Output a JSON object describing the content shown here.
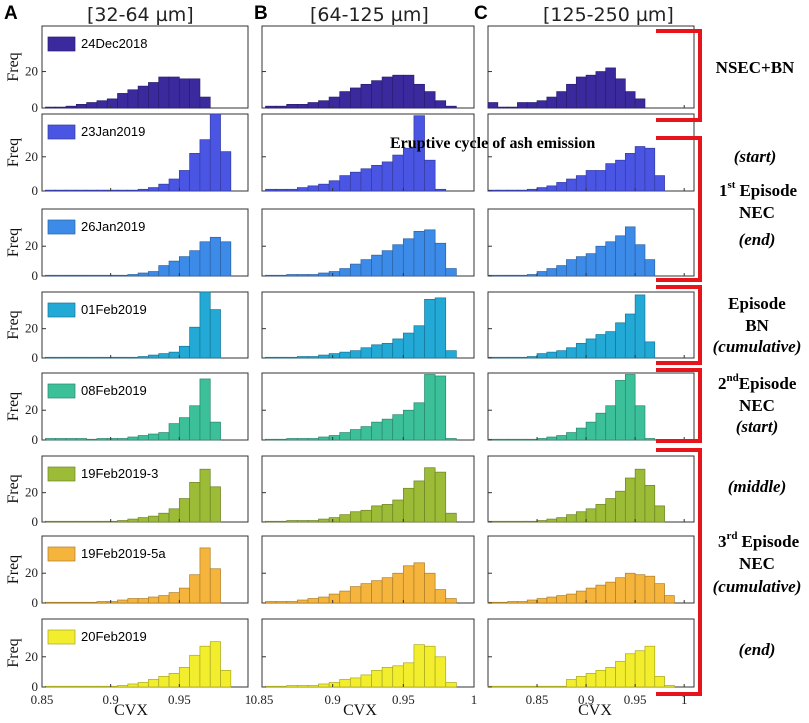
{
  "figure": {
    "columns": [
      {
        "letter": "A",
        "title": "[32-64 µm]"
      },
      {
        "letter": "B",
        "title": "[64-125 µm]"
      },
      {
        "letter": "C",
        "title": "[125-250 µm]"
      }
    ],
    "ylabel": "Freq",
    "xlabel": "CVX",
    "xticks_ab": [
      "0.85",
      "0.9",
      "0.95",
      "1"
    ],
    "xticks_c": [
      "0.85",
      "0.9",
      "0.95",
      "1"
    ],
    "ytick_labels": [
      "0",
      "20"
    ],
    "eruptive_label": "Eruptive cycle of ash emission"
  },
  "annotations": {
    "nsec_bn": "NSEC+BN",
    "ep1_start": "(start)",
    "ep1_num": "1",
    "ep1_sup": "st",
    "ep1_label": "Episode",
    "ep1_nec": "NEC",
    "ep1_end": "(end)",
    "epbn_label": "Episode",
    "epbn_bn": "BN",
    "epbn_cum": "(cumulative)",
    "ep2_num": "2",
    "ep2_sup": "nd",
    "ep2_label": "Episode",
    "ep2_nec": "NEC",
    "ep2_start": "(start)",
    "ep3_middle": "(middle)",
    "ep3_num": "3",
    "ep3_sup": "rd",
    "ep3_label": "Episode",
    "ep3_nec": "NEC",
    "ep3_cum": "(cumulative)",
    "ep3_end": "(end)"
  },
  "colors": {
    "rows": [
      "#3b2a9e",
      "#4a56e3",
      "#3d8be8",
      "#22a9d6",
      "#3cc09a",
      "#9cbb36",
      "#f5b43c",
      "#f2ee2e"
    ],
    "bracket": "#e8141b"
  },
  "chart_data": {
    "type": "bar",
    "x_axis": {
      "label": "CVX",
      "ab_range": [
        0.85,
        1.0
      ],
      "c_range": [
        0.8,
        1.01
      ],
      "ticks": [
        0.85,
        0.9,
        0.95,
        1.0
      ]
    },
    "y_axis": {
      "label": "Freq",
      "ticks": [
        0,
        20
      ],
      "max": 45
    },
    "rows": [
      {
        "date": "24Dec2018",
        "A": {
          "x0": 0.8525,
          "w": 0.0075,
          "values": [
            0.5,
            0.5,
            1,
            2,
            3,
            4,
            5,
            8,
            10,
            12,
            14,
            17,
            17,
            16,
            16,
            6
          ]
        },
        "B": {
          "x0": 0.8525,
          "w": 0.0075,
          "values": [
            1,
            1,
            2,
            2,
            3,
            4,
            6,
            9,
            11,
            13,
            15,
            17,
            18,
            18,
            13,
            9,
            4,
            1
          ]
        },
        "C": {
          "x0": 0.8,
          "w": 0.01,
          "values": [
            3,
            0.5,
            0.5,
            3,
            3,
            4,
            6,
            9,
            13,
            17,
            18,
            20,
            22,
            16,
            9,
            5
          ]
        }
      },
      {
        "date": "23Jan2019",
        "A": {
          "x0": 0.8525,
          "w": 0.0075,
          "values": [
            0.5,
            0.5,
            0.5,
            0.5,
            0.5,
            0.5,
            0.5,
            0.5,
            0.5,
            1,
            2,
            4,
            7,
            12,
            22,
            30,
            45,
            23
          ]
        },
        "B": {
          "x0": 0.8525,
          "w": 0.0075,
          "values": [
            1,
            1,
            1,
            2,
            3,
            4,
            6,
            9,
            11,
            13,
            15,
            17,
            21,
            25,
            44,
            18,
            1
          ]
        },
        "C": {
          "x0": 0.8,
          "w": 0.01,
          "values": [
            0.5,
            0.5,
            0.5,
            0.5,
            1,
            2,
            3,
            5,
            7,
            9,
            12,
            12,
            16,
            18,
            22,
            26,
            25,
            9
          ]
        }
      },
      {
        "date": "26Jan2019",
        "A": {
          "x0": 0.8525,
          "w": 0.0075,
          "values": [
            0.5,
            0.5,
            0.5,
            0.5,
            0.5,
            0.5,
            0.5,
            0.5,
            1,
            2,
            3,
            7,
            10,
            13,
            17,
            23,
            26,
            23
          ]
        },
        "B": {
          "x0": 0.8525,
          "w": 0.0075,
          "values": [
            0.5,
            0.5,
            1,
            1,
            1,
            2,
            3,
            5,
            8,
            11,
            14,
            17,
            21,
            25,
            30,
            31,
            22,
            5
          ]
        },
        "C": {
          "x0": 0.8,
          "w": 0.01,
          "values": [
            0.5,
            0.5,
            0.5,
            0.5,
            1,
            3,
            5,
            7,
            11,
            13,
            15,
            20,
            23,
            27,
            33,
            21,
            11
          ]
        }
      },
      {
        "date": "01Feb2019",
        "A": {
          "x0": 0.8525,
          "w": 0.0075,
          "values": [
            0.5,
            0.5,
            0.5,
            0.5,
            0.5,
            0.5,
            0.5,
            0.5,
            0.5,
            1,
            2,
            3,
            4,
            8,
            21,
            45,
            33
          ]
        },
        "B": {
          "x0": 0.8525,
          "w": 0.0075,
          "values": [
            0.5,
            0.5,
            0.5,
            1,
            1,
            2,
            3,
            4,
            5,
            7,
            9,
            10,
            13,
            17,
            22,
            40,
            41,
            5
          ]
        },
        "C": {
          "x0": 0.8,
          "w": 0.01,
          "values": [
            0.5,
            0.5,
            0.5,
            0.5,
            1,
            3,
            4,
            5,
            7,
            10,
            13,
            16,
            18,
            24,
            30,
            43,
            11
          ]
        }
      },
      {
        "date": "08Feb2019",
        "A": {
          "x0": 0.8525,
          "w": 0.0075,
          "values": [
            1,
            1,
            1,
            1,
            0.5,
            1,
            1,
            1,
            2,
            3,
            4,
            5,
            11,
            15,
            23,
            41,
            12
          ]
        },
        "B": {
          "x0": 0.8525,
          "w": 0.0075,
          "values": [
            0.5,
            0.5,
            1,
            1,
            1,
            2,
            3,
            5,
            7,
            9,
            12,
            14,
            17,
            20,
            25,
            44,
            43,
            1
          ]
        },
        "C": {
          "x0": 0.8,
          "w": 0.01,
          "values": [
            0.5,
            0.5,
            0.5,
            0.5,
            0.5,
            1,
            2,
            3,
            5,
            8,
            12,
            18,
            23,
            40,
            44,
            23,
            1
          ]
        }
      },
      {
        "date": "19Feb2019-3",
        "A": {
          "x0": 0.8525,
          "w": 0.0075,
          "values": [
            0.5,
            0.5,
            0.5,
            0.5,
            0.5,
            0.5,
            0.5,
            1,
            2,
            3,
            4,
            6,
            9,
            16,
            27,
            36,
            24
          ]
        },
        "B": {
          "x0": 0.8525,
          "w": 0.0075,
          "values": [
            0.5,
            0.5,
            1,
            1,
            1,
            2,
            3,
            5,
            7,
            8,
            11,
            12,
            15,
            23,
            28,
            37,
            34,
            6
          ]
        },
        "C": {
          "x0": 0.8,
          "w": 0.01,
          "values": [
            0.5,
            0.5,
            0.5,
            0.5,
            0.5,
            1,
            2,
            3,
            5,
            7,
            9,
            12,
            16,
            21,
            30,
            36,
            25,
            11
          ]
        }
      },
      {
        "date": "19Feb2019-5a",
        "A": {
          "x0": 0.8525,
          "w": 0.0075,
          "values": [
            0.5,
            0.5,
            0.5,
            0.5,
            0.5,
            1,
            1,
            2,
            3,
            3,
            4,
            5,
            7,
            10,
            19,
            37,
            23
          ]
        },
        "B": {
          "x0": 0.8525,
          "w": 0.0075,
          "values": [
            1,
            1,
            1,
            2,
            3,
            4,
            6,
            8,
            11,
            13,
            15,
            17,
            20,
            25,
            27,
            20,
            9,
            3
          ]
        },
        "C": {
          "x0": 0.8,
          "w": 0.01,
          "values": [
            0.5,
            0.5,
            1,
            1,
            2,
            3,
            4,
            5,
            6,
            8,
            10,
            12,
            14,
            17,
            20,
            19,
            18,
            13,
            5
          ]
        }
      },
      {
        "date": "20Feb2019",
        "A": {
          "x0": 0.8525,
          "w": 0.0075,
          "values": [
            0.5,
            0.5,
            0.5,
            0.5,
            0.5,
            0.5,
            0.5,
            1,
            2,
            3,
            5,
            7,
            9,
            13,
            21,
            27,
            30,
            11
          ]
        },
        "B": {
          "x0": 0.8525,
          "w": 0.0075,
          "values": [
            0.5,
            0.5,
            1,
            1,
            1,
            2,
            3,
            5,
            6,
            8,
            11,
            13,
            14,
            16,
            28,
            27,
            20,
            3
          ]
        },
        "C": {
          "x0": 0.8,
          "w": 0.01,
          "values": [
            0.5,
            0.5,
            0.5,
            0.5,
            0.5,
            0.5,
            0.5,
            0.5,
            5,
            7,
            9,
            11,
            13,
            17,
            22,
            24,
            27,
            7,
            1
          ]
        }
      }
    ]
  }
}
